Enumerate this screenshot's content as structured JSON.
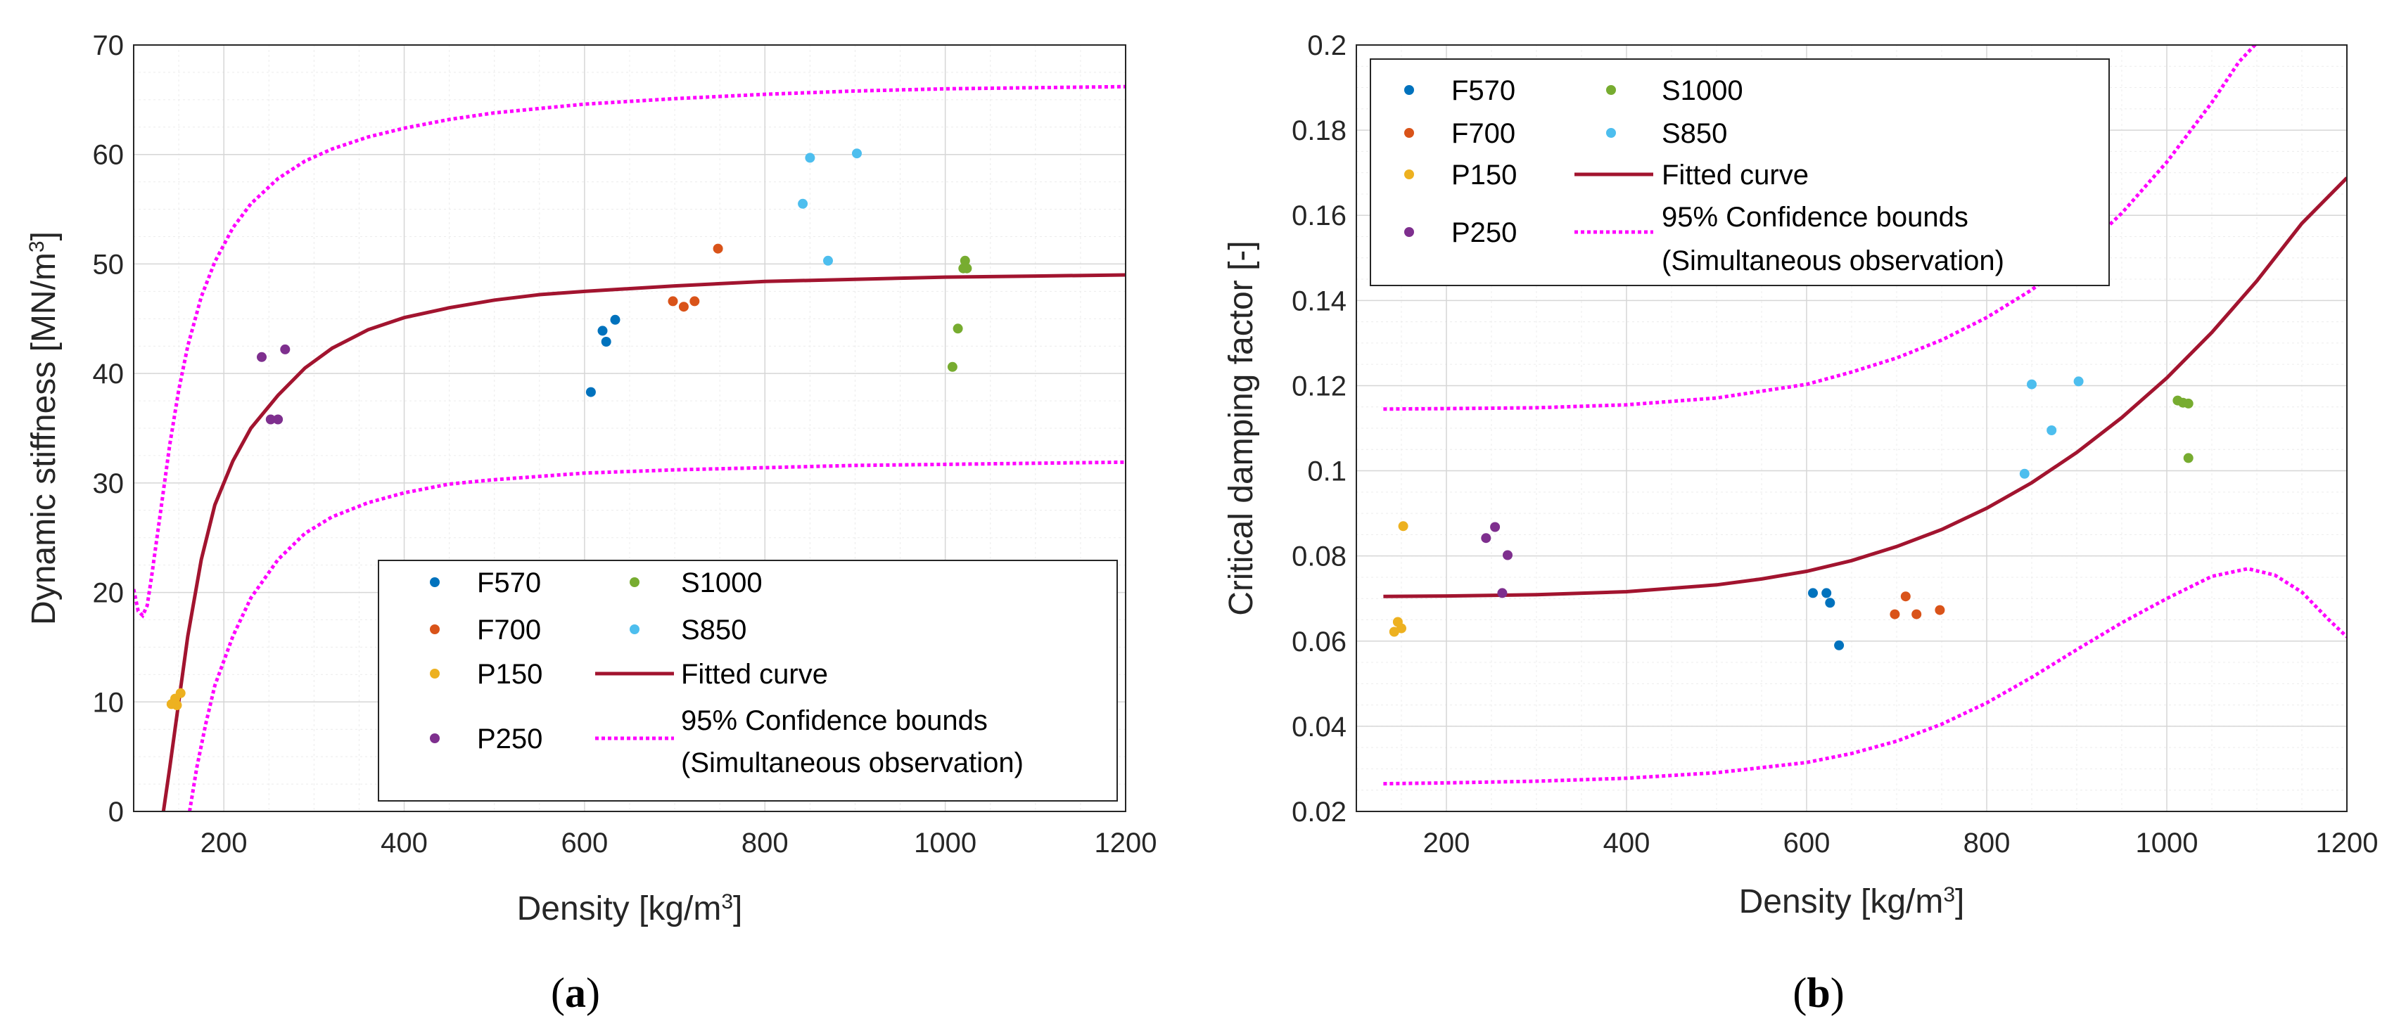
{
  "colors": {
    "F570": "#0072BD",
    "F700": "#D95319",
    "P150": "#EDB120",
    "P250": "#7E2F8E",
    "S1000": "#77AC30",
    "S850": "#4DBEEE",
    "fit": "#A2142F",
    "bounds": "#FF00FF"
  },
  "chart_data": [
    {
      "type": "scatter",
      "panel_label": "a",
      "xlabel": "Density [kg/m",
      "xlabel_sup": "3",
      "xlabel_end": "]",
      "ylabel": "Dynamic stiffness [MN/m",
      "ylabel_sup": "3",
      "ylabel_end": "]",
      "xlim": [
        100,
        1200
      ],
      "ylim": [
        0,
        70
      ],
      "xticks": [
        200,
        400,
        600,
        800,
        1000,
        1200
      ],
      "yticks": [
        0,
        10,
        20,
        30,
        40,
        50,
        60,
        70
      ],
      "grid": true,
      "legend_position": "bottom-right",
      "series": [
        {
          "name": "F570",
          "points": [
            [
              607,
              38.3
            ],
            [
              620,
              43.9
            ],
            [
              624,
              42.9
            ],
            [
              634,
              44.9
            ]
          ]
        },
        {
          "name": "F700",
          "points": [
            [
              698,
              46.6
            ],
            [
              710,
              46.1
            ],
            [
              722,
              46.6
            ],
            [
              748,
              51.4
            ]
          ]
        },
        {
          "name": "P150",
          "points": [
            [
              142,
              9.8
            ],
            [
              146,
              10.3
            ],
            [
              148,
              9.7
            ],
            [
              152,
              10.8
            ]
          ]
        },
        {
          "name": "P250",
          "points": [
            [
              242,
              41.5
            ],
            [
              252,
              35.8
            ],
            [
              260,
              35.8
            ],
            [
              268,
              42.2
            ]
          ]
        },
        {
          "name": "S1000",
          "points": [
            [
              1008,
              40.6
            ],
            [
              1014,
              44.1
            ],
            [
              1020,
              49.6
            ],
            [
              1022,
              50.3
            ],
            [
              1024,
              49.6
            ]
          ]
        },
        {
          "name": "S850",
          "points": [
            [
              842,
              55.5
            ],
            [
              850,
              59.7
            ],
            [
              870,
              50.3
            ],
            [
              902,
              60.1
            ]
          ]
        }
      ],
      "fitted_curve": {
        "name": "Fitted curve",
        "x": [
          133,
          140,
          150,
          160,
          175,
          190,
          210,
          230,
          260,
          290,
          320,
          360,
          400,
          450,
          500,
          550,
          600,
          700,
          800,
          900,
          1000,
          1100,
          1200
        ],
        "y": [
          0,
          4,
          10,
          16,
          23,
          28,
          32,
          35,
          38,
          40.5,
          42.3,
          44,
          45.1,
          46,
          46.7,
          47.2,
          47.5,
          48,
          48.4,
          48.6,
          48.8,
          48.9,
          49
        ]
      },
      "upper_bound": {
        "name": "95% Confidence bounds",
        "x": [
          100,
          105,
          110,
          115,
          120,
          130,
          140,
          150,
          160,
          175,
          190,
          210,
          230,
          260,
          290,
          320,
          360,
          400,
          450,
          500,
          600,
          700,
          800,
          900,
          1000,
          1100,
          1200
        ],
        "y": [
          20.3,
          18.3,
          17.9,
          18.8,
          21.5,
          27.5,
          33.5,
          38.5,
          42.5,
          47,
          50.2,
          53.3,
          55.5,
          57.8,
          59.4,
          60.5,
          61.6,
          62.4,
          63.2,
          63.8,
          64.6,
          65.1,
          65.5,
          65.8,
          66,
          66.1,
          66.2
        ]
      },
      "lower_bound": {
        "name": "(Simultaneous observation)",
        "x": [
          162,
          170,
          180,
          190,
          210,
          230,
          260,
          290,
          320,
          360,
          400,
          450,
          500,
          600,
          700,
          800,
          900,
          1000,
          1100,
          1200
        ],
        "y": [
          0,
          4,
          8,
          11.5,
          16,
          19.5,
          23,
          25.4,
          26.9,
          28.2,
          29.1,
          29.9,
          30.3,
          30.9,
          31.2,
          31.4,
          31.6,
          31.7,
          31.8,
          31.9
        ]
      },
      "legend": {
        "F570": "F570",
        "F700": "F700",
        "P150": "P150",
        "P250": "P250",
        "S1000": "S1000",
        "S850": "S850",
        "fit": "Fitted curve",
        "bounds_line1": "95% Confidence bounds",
        "bounds_line2": "(Simultaneous observation)"
      }
    },
    {
      "type": "scatter",
      "panel_label": "b",
      "xlabel": "Density [kg/m",
      "xlabel_sup": "3",
      "xlabel_end": "]",
      "ylabel": "Critical damping factor [-]",
      "xlim": [
        100,
        1200
      ],
      "ylim": [
        0.02,
        0.2
      ],
      "xticks": [
        200,
        400,
        600,
        800,
        1000,
        1200
      ],
      "yticks": [
        0.02,
        0.04,
        0.06,
        0.08,
        0.1,
        0.12,
        0.14,
        0.16,
        0.18,
        0.2
      ],
      "ytick_labels": [
        "0.02",
        "0.04",
        "0.06",
        "0.08",
        "0.1",
        "0.12",
        "0.14",
        "0.16",
        "0.18",
        "0.2"
      ],
      "grid": true,
      "legend_position": "top-left",
      "series": [
        {
          "name": "F570",
          "points": [
            [
              607,
              0.0713
            ],
            [
              622,
              0.0713
            ],
            [
              626,
              0.069
            ],
            [
              636,
              0.059
            ]
          ]
        },
        {
          "name": "F700",
          "points": [
            [
              698,
              0.0663
            ],
            [
              710,
              0.0705
            ],
            [
              722,
              0.0663
            ],
            [
              748,
              0.0673
            ]
          ]
        },
        {
          "name": "P150",
          "points": [
            [
              142,
              0.0622
            ],
            [
              146,
              0.0645
            ],
            [
              150,
              0.063
            ],
            [
              152,
              0.087
            ]
          ]
        },
        {
          "name": "P250",
          "points": [
            [
              244,
              0.0842
            ],
            [
              254,
              0.0868
            ],
            [
              262,
              0.0713
            ],
            [
              268,
              0.0802
            ]
          ]
        },
        {
          "name": "S1000",
          "points": [
            [
              1012,
              0.1165
            ],
            [
              1018,
              0.116
            ],
            [
              1024,
              0.1158
            ],
            [
              1024,
              0.103
            ]
          ]
        },
        {
          "name": "S850",
          "points": [
            [
              842,
              0.0993
            ],
            [
              850,
              0.1203
            ],
            [
              872,
              0.1095
            ],
            [
              902,
              0.121
            ]
          ]
        }
      ],
      "fitted_curve": {
        "name": "Fitted curve",
        "x": [
          130,
          200,
          300,
          400,
          500,
          550,
          600,
          650,
          700,
          750,
          800,
          850,
          900,
          950,
          1000,
          1050,
          1100,
          1150,
          1200
        ],
        "y": [
          0.0705,
          0.0706,
          0.0709,
          0.0716,
          0.0732,
          0.0746,
          0.0764,
          0.0789,
          0.0822,
          0.0862,
          0.0912,
          0.0972,
          0.1043,
          0.1125,
          0.1218,
          0.1325,
          0.1446,
          0.1581,
          0.1688
        ]
      },
      "upper_bound": {
        "name": "95% Confidence bounds",
        "x": [
          130,
          200,
          300,
          400,
          500,
          600,
          650,
          700,
          750,
          800,
          850,
          900,
          950,
          1000,
          1050,
          1080,
          1100
        ],
        "y": [
          0.1145,
          0.1146,
          0.1148,
          0.1155,
          0.1171,
          0.1203,
          0.1232,
          0.1265,
          0.1307,
          0.136,
          0.1425,
          0.1505,
          0.1605,
          0.1725,
          0.1865,
          0.196,
          0.2005
        ]
      },
      "lower_bound": {
        "name": "(Simultaneous observation)",
        "x": [
          130,
          200,
          300,
          400,
          500,
          600,
          650,
          700,
          750,
          800,
          850,
          900,
          950,
          1000,
          1050,
          1090,
          1120,
          1150,
          1180,
          1200
        ],
        "y": [
          0.0265,
          0.0267,
          0.0271,
          0.0278,
          0.0291,
          0.0315,
          0.0336,
          0.0365,
          0.0405,
          0.0455,
          0.0515,
          0.058,
          0.0643,
          0.07,
          0.0752,
          0.077,
          0.0755,
          0.0715,
          0.065,
          0.061
        ]
      },
      "legend": {
        "F570": "F570",
        "F700": "F700",
        "P150": "P150",
        "P250": "P250",
        "S1000": "S1000",
        "S850": "S850",
        "fit": "Fitted curve",
        "bounds_line1": "95% Confidence bounds",
        "bounds_line2": "(Simultaneous observation)"
      }
    }
  ]
}
